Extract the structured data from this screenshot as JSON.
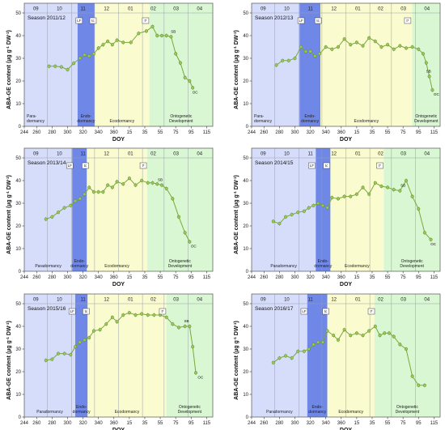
{
  "colors": {
    "paradormancy": "#d6ddfb",
    "endodormancy": "#6f87e6",
    "ecodormancy": "#fbfbd0",
    "ontogenetic": "#d8f7d2",
    "line": "#7aa83c",
    "marker": "#9bcb57"
  },
  "x_ticks": [
    "244",
    "260",
    "280",
    "300",
    "320",
    "340",
    "360",
    "15",
    "35",
    "55",
    "75",
    "95",
    "115"
  ],
  "x_label": "DOY",
  "y_label": "ABA-GE content (µg g-1 DW-1)",
  "months": [
    "09",
    "10",
    "11",
    "12",
    "01",
    "02",
    "03",
    "04"
  ],
  "phase_names": {
    "paradormancy": "Paradormancy",
    "endodormancy": "Endo-dormancy",
    "ecodormancy": "Ecodormancy",
    "ontogenetic": "Ontogenetic Development"
  },
  "chart_data": [
    {
      "type": "line",
      "season": "Season 2011/12",
      "xlabel": "DOY",
      "ylabel": "ABA-GE content (µg g-1 DW-1)",
      "ylim": [
        0,
        50
      ],
      "y_ticks": [
        0,
        10,
        20,
        30,
        40,
        50
      ],
      "x_ticks": [
        244,
        260,
        280,
        300,
        320,
        340,
        360,
        15,
        35,
        55,
        75,
        95,
        115
      ],
      "phases": {
        "paradormancy": [
          244,
          313
        ],
        "endodormancy": [
          313,
          335
        ],
        "ecodormancy": [
          335,
          41
        ],
        "ontogenetic": [
          41,
          123
        ]
      },
      "phase_label_style": "para-split",
      "events": [
        {
          "label": "LF",
          "x": 315
        },
        {
          "label": "tc",
          "x": 333
        },
        {
          "label": "t*",
          "x": 36
        },
        {
          "label": "SB",
          "x": 72
        },
        {
          "label": "OC",
          "x": 97
        }
      ],
      "series": [
        {
          "x": [
            276,
            284,
            292,
            300,
            308,
            316,
            322,
            328,
            334,
            340,
            346,
            352,
            358,
            364,
            7,
            17,
            27,
            37,
            45,
            51,
            57,
            63,
            69,
            75,
            81,
            87,
            93,
            97
          ],
          "y": [
            26.5,
            26.5,
            26.2,
            25,
            27.8,
            30,
            31.5,
            31,
            32,
            34.5,
            36,
            37.5,
            36,
            38,
            37,
            37,
            41,
            42,
            44,
            40,
            40,
            40,
            39.5,
            32,
            28,
            21.5,
            20,
            17
          ]
        }
      ]
    },
    {
      "type": "line",
      "season": "Season 2012/13",
      "xlabel": "DOY",
      "ylabel": "ABA-GE content (µg g-1 DW-1)",
      "ylim": [
        0,
        50
      ],
      "y_ticks": [
        0,
        10,
        20,
        30,
        40,
        50
      ],
      "x_ticks": [
        244,
        260,
        280,
        300,
        320,
        340,
        360,
        15,
        35,
        55,
        75,
        95,
        115
      ],
      "phases": {
        "paradormancy": [
          244,
          306
        ],
        "endodormancy": [
          306,
          333
        ],
        "ecodormancy": [
          333,
          87
        ],
        "ontogenetic": [
          87,
          123
        ]
      },
      "phase_label_style": "para-split",
      "events": [
        {
          "label": "LF",
          "x": 308
        },
        {
          "label": "tc",
          "x": 330
        },
        {
          "label": "t*",
          "x": 81
        },
        {
          "label": "SB",
          "x": 108
        },
        {
          "label": "OC",
          "x": 115
        }
      ],
      "series": [
        {
          "x": [
            276,
            284,
            292,
            300,
            308,
            314,
            320,
            326,
            332,
            340,
            348,
            356,
            364,
            7,
            15,
            23,
            31,
            39,
            47,
            55,
            63,
            71,
            79,
            87,
            95,
            101,
            105,
            109,
            113
          ],
          "y": [
            27,
            29,
            29,
            30,
            35,
            33,
            33,
            31,
            32,
            35,
            34,
            35,
            38.5,
            36,
            37,
            35.5,
            39,
            37.5,
            35,
            36,
            34,
            35.5,
            34.5,
            35,
            34,
            32,
            28,
            22,
            16
          ]
        }
      ]
    },
    {
      "type": "line",
      "season": "Season 2013/14",
      "xlabel": "DOY",
      "ylabel": "ABA-GE content (µg g-1 DW-1)",
      "ylim": [
        0,
        50
      ],
      "y_ticks": [
        0,
        10,
        20,
        30,
        40,
        50
      ],
      "x_ticks": [
        244,
        260,
        280,
        300,
        320,
        340,
        360,
        15,
        35,
        55,
        75,
        95,
        115
      ],
      "phases": {
        "paradormancy": [
          244,
          306
        ],
        "endodormancy": [
          306,
          325
        ],
        "ecodormancy": [
          325,
          38
        ],
        "ontogenetic": [
          38,
          123
        ]
      },
      "phase_label_style": "single",
      "events": [
        {
          "label": "LF",
          "x": 303
        },
        {
          "label": "tc",
          "x": 323
        },
        {
          "label": "t*",
          "x": 33
        },
        {
          "label": "SB",
          "x": 55
        },
        {
          "label": "OC",
          "x": 95
        }
      ],
      "series": [
        {
          "x": [
            272,
            280,
            288,
            296,
            304,
            310,
            316,
            322,
            328,
            334,
            340,
            346,
            352,
            358,
            364,
            7,
            15,
            23,
            31,
            39,
            45,
            51,
            57,
            63,
            71,
            79,
            87,
            93
          ],
          "y": [
            23,
            24,
            26,
            28,
            29,
            31,
            32,
            34,
            37,
            35,
            35,
            35,
            38,
            37,
            39.5,
            38.5,
            41,
            38,
            40,
            39,
            39,
            38.5,
            38,
            36.5,
            32,
            24,
            17,
            13
          ]
        }
      ]
    },
    {
      "type": "line",
      "season": "Season 2014/15",
      "xlabel": "DOY",
      "ylabel": "ABA-GE content (µg g-1 DW-1)",
      "ylim": [
        0,
        50
      ],
      "y_ticks": [
        0,
        10,
        20,
        30,
        40,
        50
      ],
      "x_ticks": [
        244,
        260,
        280,
        300,
        320,
        340,
        360,
        15,
        35,
        55,
        75,
        95,
        115
      ],
      "phases": {
        "paradormancy": [
          244,
          327
        ],
        "endodormancy": [
          327,
          346
        ],
        "ecodormancy": [
          346,
          50
        ],
        "ontogenetic": [
          50,
          123
        ]
      },
      "phase_label_style": "single",
      "events": [
        {
          "label": "LF",
          "x": 322
        },
        {
          "label": "tc",
          "x": 341
        },
        {
          "label": "t*",
          "x": 45
        },
        {
          "label": "SB",
          "x": 75
        },
        {
          "label": "OC",
          "x": 111
        }
      ],
      "series": [
        {
          "x": [
            272,
            280,
            288,
            296,
            304,
            312,
            318,
            324,
            330,
            336,
            342,
            348,
            356,
            364,
            7,
            15,
            23,
            31,
            39,
            47,
            55,
            63,
            71,
            79,
            87,
            95,
            103,
            111
          ],
          "y": [
            22,
            21,
            24,
            25,
            26,
            26.5,
            28,
            29,
            30,
            29,
            28,
            32.5,
            32,
            33,
            33,
            34,
            37,
            34,
            39,
            37.5,
            37,
            36,
            35.5,
            40,
            33,
            27.5,
            17,
            14
          ]
        }
      ]
    },
    {
      "type": "line",
      "season": "Season 2015/16",
      "xlabel": "DOY",
      "ylabel": "ABA-GE content (µg g-1 DW-1)",
      "ylim": [
        0,
        50
      ],
      "y_ticks": [
        0,
        10,
        20,
        30,
        40,
        50
      ],
      "x_ticks": [
        244,
        260,
        280,
        300,
        320,
        340,
        360,
        15,
        35,
        55,
        75,
        95,
        115
      ],
      "phases": {
        "paradormancy": [
          244,
          310
        ],
        "endodormancy": [
          310,
          326
        ],
        "ecodormancy": [
          326,
          63
        ],
        "ontogenetic": [
          63,
          123
        ]
      },
      "phase_label_style": "single",
      "events": [
        {
          "label": "LF",
          "x": 306
        },
        {
          "label": "tc",
          "x": 324
        },
        {
          "label": "t*",
          "x": 58
        },
        {
          "label": "SB",
          "x": 89
        },
        {
          "label": "OC",
          "x": 104
        }
      ],
      "series": [
        {
          "x": [
            272,
            280,
            288,
            296,
            304,
            310,
            316,
            322,
            328,
            334,
            342,
            350,
            358,
            364,
            7,
            15,
            23,
            31,
            39,
            47,
            55,
            63,
            71,
            79,
            87,
            93,
            97,
            101
          ],
          "y": [
            25,
            25.5,
            28,
            28,
            27.5,
            31,
            33,
            34,
            35,
            38,
            38.5,
            41,
            44,
            42,
            45,
            46,
            45,
            45.5,
            45,
            45,
            45,
            44,
            41,
            39.5,
            40,
            40,
            31,
            19.5
          ]
        }
      ]
    },
    {
      "type": "line",
      "season": "Season 2016/17",
      "xlabel": "DOY",
      "ylabel": "ABA-GE content (µg g-1 DW-1)",
      "ylim": [
        0,
        50
      ],
      "y_ticks": [
        0,
        10,
        20,
        30,
        40,
        50
      ],
      "x_ticks": [
        244,
        260,
        280,
        300,
        320,
        340,
        360,
        15,
        35,
        55,
        75,
        95,
        115
      ],
      "phases": {
        "paradormancy": [
          244,
          316
        ],
        "endodormancy": [
          316,
          342
        ],
        "ecodormancy": [
          342,
          38
        ],
        "ontogenetic": [
          38,
          123
        ]
      },
      "phase_label_style": "single",
      "events": [
        {
          "label": "LF",
          "x": 312
        },
        {
          "label": "tc",
          "x": 340
        },
        {
          "label": "t*",
          "x": 34
        }
      ],
      "series": [
        {
          "x": [
            272,
            280,
            288,
            296,
            304,
            312,
            318,
            324,
            330,
            336,
            342,
            350,
            356,
            364,
            7,
            15,
            23,
            31,
            39,
            45,
            51,
            57,
            63,
            71,
            79,
            87,
            95,
            103
          ],
          "y": [
            24,
            26,
            27,
            26,
            29,
            29,
            30,
            32,
            33,
            33,
            38,
            36,
            34,
            38.5,
            36,
            37,
            36,
            38,
            40,
            36,
            37,
            37,
            35.5,
            32,
            30,
            18,
            14,
            14
          ]
        }
      ]
    }
  ]
}
